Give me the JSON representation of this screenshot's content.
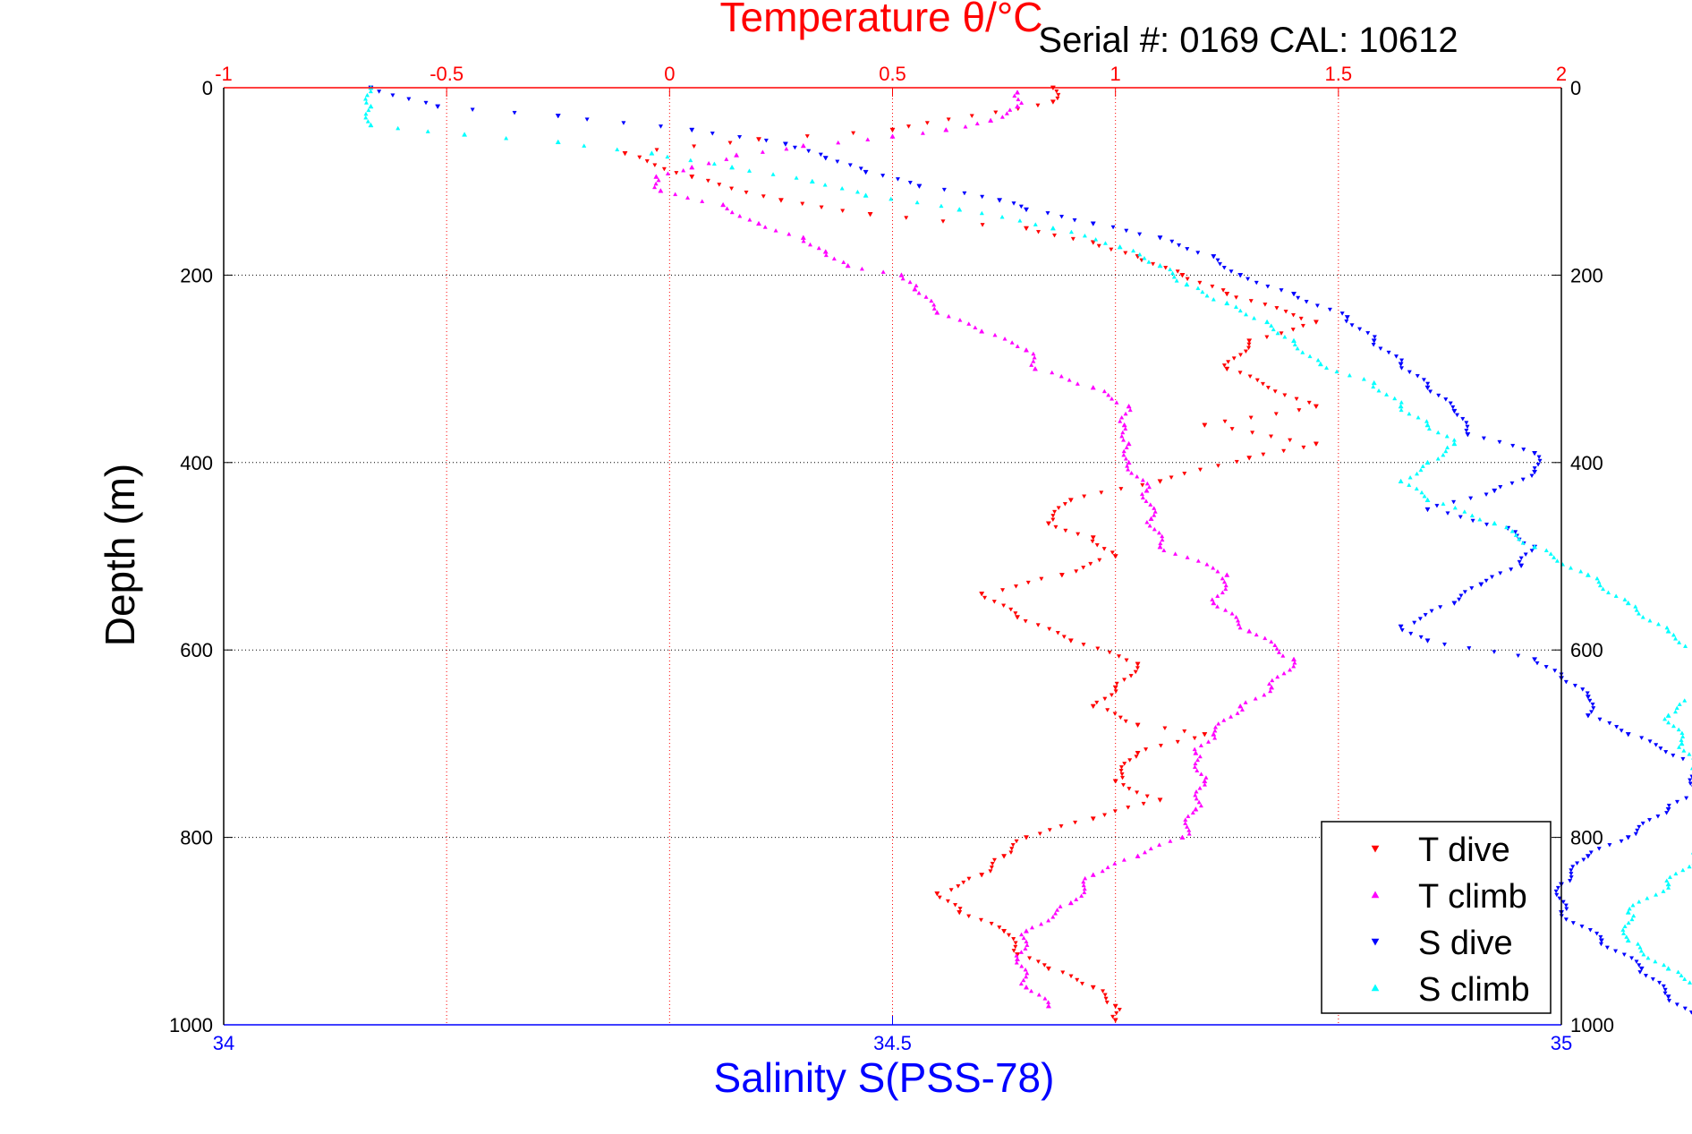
{
  "chart_data": {
    "type": "scatter",
    "title": "Temperature θ/°C",
    "subtitle": "Serial #: 0169 CAL: 10612",
    "ylabel": "Depth (m)",
    "x_top_label": "Temperature θ/°C",
    "x_bottom_label": "Salinity S(PSS-78)",
    "ylim": [
      0,
      1000
    ],
    "y_reversed": true,
    "temperature_lim": [
      -1,
      2
    ],
    "salinity_lim": [
      34,
      35
    ],
    "yticks": [
      "0",
      "200",
      "400",
      "600",
      "800",
      "1000"
    ],
    "ytick_values": [
      0,
      200,
      400,
      600,
      800,
      1000
    ],
    "temp_ticks": [
      "-1",
      "-0.5",
      "0",
      "0.5",
      "1",
      "1.5",
      "2"
    ],
    "temp_tick_values": [
      -1,
      -0.5,
      0,
      0.5,
      1,
      1.5,
      2
    ],
    "sal_ticks": [
      "34",
      "34.5",
      "35"
    ],
    "sal_tick_values": [
      34,
      34.5,
      35
    ],
    "grid": true,
    "legend_position": "bottom-right",
    "colors": {
      "temperature_axis": "#ff0000",
      "salinity_axis": "#0000ff",
      "depth_grid": "#000000"
    },
    "series": [
      {
        "name": "T dive",
        "axis": "temperature",
        "color": "#ff0000",
        "marker": "triangle-down",
        "points": [
          [
            0.86,
            0
          ],
          [
            0.86,
            15
          ],
          [
            0.5,
            45
          ],
          [
            0.2,
            55
          ],
          [
            -0.1,
            70
          ],
          [
            0.05,
            95
          ],
          [
            0.25,
            120
          ],
          [
            0.45,
            135
          ],
          [
            0.8,
            150
          ],
          [
            0.95,
            165
          ],
          [
            1.05,
            180
          ],
          [
            1.15,
            200
          ],
          [
            1.25,
            220
          ],
          [
            1.45,
            250
          ],
          [
            1.3,
            270
          ],
          [
            1.25,
            300
          ],
          [
            1.45,
            340
          ],
          [
            1.2,
            360
          ],
          [
            1.45,
            380
          ],
          [
            1.3,
            395
          ],
          [
            1.1,
            420
          ],
          [
            0.9,
            440
          ],
          [
            0.85,
            465
          ],
          [
            0.95,
            480
          ],
          [
            1.0,
            500
          ],
          [
            0.88,
            520
          ],
          [
            0.7,
            540
          ],
          [
            0.78,
            565
          ],
          [
            0.9,
            590
          ],
          [
            1.05,
            615
          ],
          [
            1.0,
            640
          ],
          [
            0.95,
            660
          ],
          [
            1.05,
            680
          ],
          [
            1.2,
            690
          ],
          [
            1.05,
            710
          ],
          [
            1.0,
            740
          ],
          [
            1.1,
            760
          ],
          [
            0.95,
            780
          ],
          [
            0.8,
            800
          ],
          [
            0.75,
            820
          ],
          [
            0.7,
            840
          ],
          [
            0.6,
            860
          ],
          [
            0.65,
            880
          ],
          [
            0.75,
            900
          ],
          [
            0.78,
            925
          ],
          [
            0.85,
            940
          ],
          [
            0.95,
            960
          ],
          [
            1.0,
            980
          ],
          [
            1.0,
            995
          ]
        ]
      },
      {
        "name": "T climb",
        "axis": "temperature",
        "color": "#ff00ff",
        "marker": "triangle-up",
        "points": [
          [
            0.78,
            5
          ],
          [
            0.78,
            20
          ],
          [
            0.72,
            35
          ],
          [
            0.62,
            45
          ],
          [
            0.5,
            52
          ],
          [
            0.3,
            62
          ],
          [
            0.15,
            72
          ],
          [
            0.05,
            85
          ],
          [
            -0.03,
            95
          ],
          [
            -0.02,
            110
          ],
          [
            0.12,
            125
          ],
          [
            0.2,
            145
          ],
          [
            0.3,
            160
          ],
          [
            0.35,
            175
          ],
          [
            0.4,
            190
          ],
          [
            0.52,
            200
          ],
          [
            0.55,
            215
          ],
          [
            0.6,
            240
          ],
          [
            0.7,
            260
          ],
          [
            0.8,
            280
          ],
          [
            0.82,
            300
          ],
          [
            0.95,
            320
          ],
          [
            1.03,
            340
          ],
          [
            1.02,
            360
          ],
          [
            1.03,
            380
          ],
          [
            1.03,
            400
          ],
          [
            1.07,
            430
          ],
          [
            1.08,
            460
          ],
          [
            1.1,
            490
          ],
          [
            1.25,
            520
          ],
          [
            1.22,
            550
          ],
          [
            1.3,
            580
          ],
          [
            1.4,
            610
          ],
          [
            1.35,
            640
          ],
          [
            1.28,
            660
          ],
          [
            1.22,
            690
          ],
          [
            1.18,
            710
          ],
          [
            1.2,
            740
          ],
          [
            1.18,
            770
          ],
          [
            1.15,
            800
          ],
          [
            1.05,
            820
          ],
          [
            0.95,
            840
          ],
          [
            0.9,
            870
          ],
          [
            0.8,
            900
          ],
          [
            0.78,
            930
          ],
          [
            0.8,
            960
          ],
          [
            0.85,
            980
          ]
        ]
      },
      {
        "name": "S dive",
        "axis": "salinity",
        "color": "#0000ff",
        "marker": "triangle-down",
        "points": [
          [
            34.11,
            0
          ],
          [
            34.16,
            20
          ],
          [
            34.25,
            30
          ],
          [
            34.35,
            45
          ],
          [
            34.42,
            60
          ],
          [
            34.45,
            75
          ],
          [
            34.48,
            90
          ],
          [
            34.52,
            105
          ],
          [
            34.58,
            120
          ],
          [
            34.6,
            130
          ],
          [
            34.65,
            145
          ],
          [
            34.7,
            160
          ],
          [
            34.74,
            180
          ],
          [
            34.76,
            200
          ],
          [
            34.8,
            220
          ],
          [
            34.84,
            245
          ],
          [
            34.86,
            270
          ],
          [
            34.88,
            295
          ],
          [
            34.9,
            320
          ],
          [
            34.92,
            345
          ],
          [
            34.93,
            370
          ],
          [
            34.98,
            390
          ],
          [
            34.98,
            410
          ],
          [
            34.95,
            430
          ],
          [
            34.9,
            450
          ],
          [
            34.96,
            470
          ],
          [
            34.98,
            490
          ],
          [
            34.97,
            510
          ],
          [
            34.94,
            530
          ],
          [
            34.92,
            550
          ],
          [
            34.88,
            575
          ],
          [
            34.9,
            590
          ],
          [
            34.98,
            610
          ],
          [
            35.0,
            630
          ],
          [
            35.02,
            650
          ],
          [
            35.02,
            670
          ],
          [
            35.05,
            690
          ],
          [
            35.1,
            720
          ],
          [
            35.1,
            750
          ],
          [
            35.08,
            770
          ],
          [
            35.05,
            800
          ],
          [
            35.02,
            820
          ],
          [
            35.0,
            850
          ],
          [
            35.0,
            880
          ],
          [
            35.03,
            910
          ],
          [
            35.06,
            940
          ],
          [
            35.08,
            970
          ],
          [
            35.1,
            995
          ]
        ]
      },
      {
        "name": "S climb",
        "axis": "salinity",
        "color": "#00ffff",
        "marker": "triangle-up",
        "points": [
          [
            34.11,
            0
          ],
          [
            34.11,
            20
          ],
          [
            34.11,
            40
          ],
          [
            34.18,
            50
          ],
          [
            34.25,
            58
          ],
          [
            34.32,
            70
          ],
          [
            34.38,
            85
          ],
          [
            34.44,
            100
          ],
          [
            34.48,
            115
          ],
          [
            34.55,
            130
          ],
          [
            34.62,
            150
          ],
          [
            34.67,
            170
          ],
          [
            34.7,
            190
          ],
          [
            34.72,
            210
          ],
          [
            34.75,
            230
          ],
          [
            34.78,
            250
          ],
          [
            34.8,
            270
          ],
          [
            34.82,
            295
          ],
          [
            34.86,
            315
          ],
          [
            34.88,
            340
          ],
          [
            34.9,
            360
          ],
          [
            34.92,
            380
          ],
          [
            34.9,
            400
          ],
          [
            34.88,
            420
          ],
          [
            34.9,
            440
          ],
          [
            34.95,
            465
          ],
          [
            34.98,
            490
          ],
          [
            35.02,
            520
          ],
          [
            35.05,
            550
          ],
          [
            35.08,
            580
          ],
          [
            35.1,
            600
          ],
          [
            35.12,
            625
          ],
          [
            35.1,
            650
          ],
          [
            35.08,
            670
          ],
          [
            35.09,
            700
          ],
          [
            35.1,
            730
          ],
          [
            35.12,
            760
          ],
          [
            35.12,
            790
          ],
          [
            35.1,
            820
          ],
          [
            35.08,
            850
          ],
          [
            35.05,
            880
          ],
          [
            35.05,
            910
          ],
          [
            35.08,
            940
          ],
          [
            35.12,
            970
          ],
          [
            35.15,
            995
          ]
        ]
      }
    ]
  }
}
